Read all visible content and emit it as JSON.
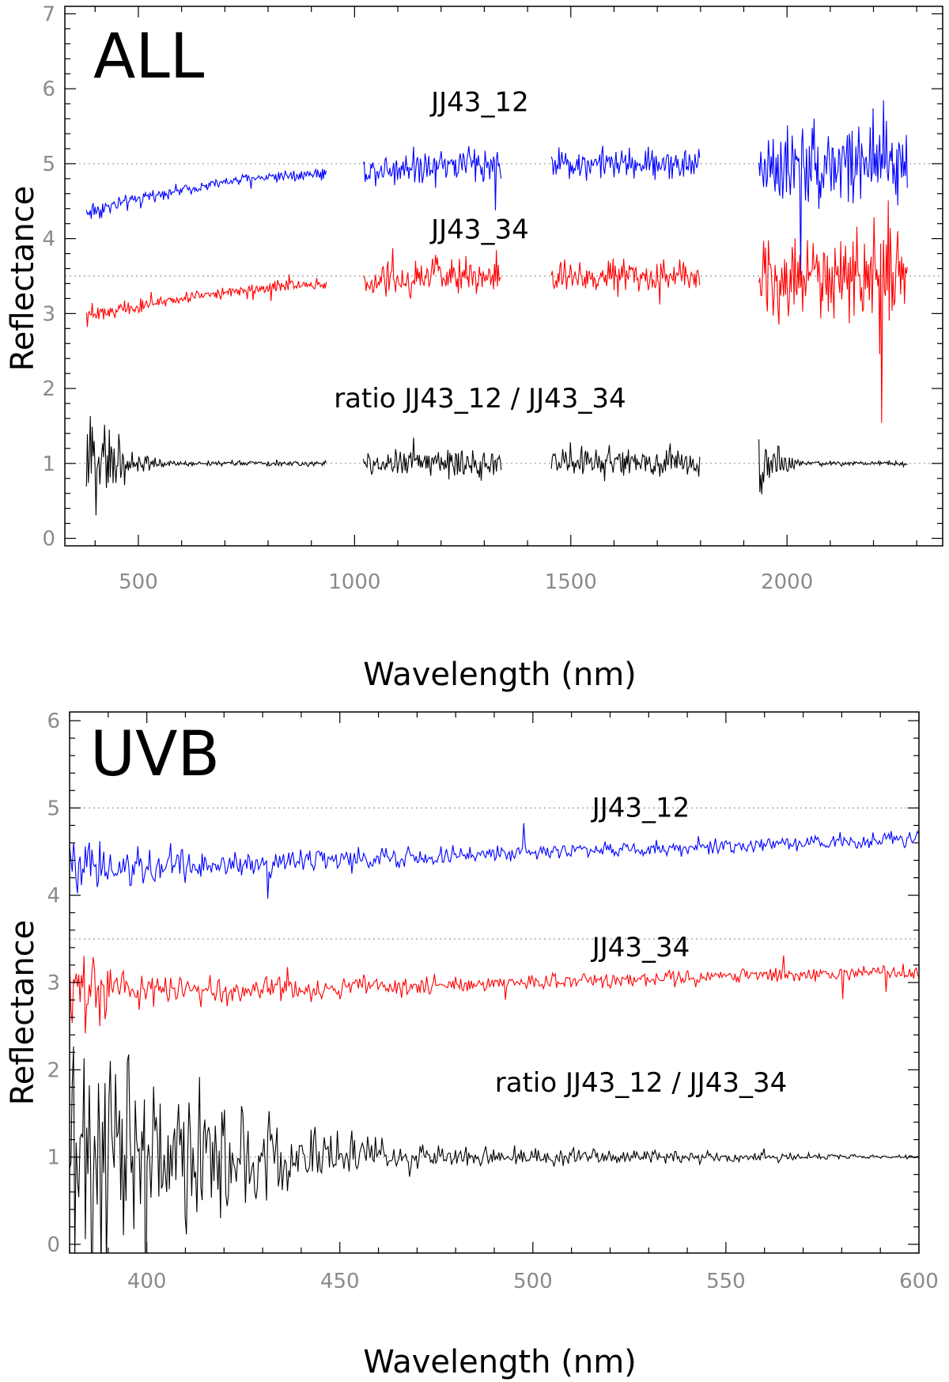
{
  "chart_data": [
    {
      "type": "line",
      "panel_label": "ALL",
      "xlabel": "Wavelength (nm)",
      "ylabel": "Reflectance",
      "xlim": [
        330,
        2360
      ],
      "ylim": [
        -0.1,
        7.1
      ],
      "xticks": [
        500,
        1000,
        1500,
        2000
      ],
      "xtick_labels": [
        "500",
        "1000",
        "1500",
        "2000"
      ],
      "yticks": [
        0,
        1,
        2,
        3,
        4,
        5,
        6,
        7
      ],
      "ytick_labels": [
        "0",
        "1",
        "2",
        "3",
        "4",
        "5",
        "6",
        "7"
      ],
      "reference_lines": [
        1,
        3.5,
        5
      ],
      "grid": false,
      "segments": [
        [
          380,
          935
        ],
        [
          1020,
          1340
        ],
        [
          1455,
          1800
        ],
        [
          1935,
          2280
        ]
      ],
      "series": [
        {
          "name": "JJ43_12",
          "color": "#0000ff",
          "x": [
            380,
            450,
            550,
            650,
            750,
            850,
            935,
            1020,
            1180,
            1340,
            1455,
            1600,
            1800,
            1935,
            2100,
            2280
          ],
          "values": [
            4.35,
            4.45,
            4.6,
            4.7,
            4.8,
            4.85,
            4.87,
            4.9,
            5.0,
            5.0,
            5.0,
            5.0,
            5.0,
            5.0,
            5.0,
            5.0
          ],
          "noise": [
            0.1,
            0.06,
            0.04,
            0.04,
            0.04,
            0.05,
            0.05,
            0.1,
            0.15,
            0.15,
            0.12,
            0.12,
            0.12,
            0.3,
            0.35,
            0.4
          ],
          "label": "JJ43_12",
          "label_at": [
            1290,
            5.7
          ]
        },
        {
          "name": "JJ43_34",
          "color": "#ff0000",
          "x": [
            380,
            450,
            550,
            650,
            750,
            850,
            935,
            1020,
            1180,
            1340,
            1455,
            1600,
            1800,
            1935,
            2100,
            2280
          ],
          "values": [
            2.95,
            3.05,
            3.15,
            3.25,
            3.32,
            3.37,
            3.39,
            3.42,
            3.5,
            3.5,
            3.5,
            3.5,
            3.5,
            3.5,
            3.5,
            3.5
          ],
          "noise": [
            0.1,
            0.06,
            0.04,
            0.04,
            0.04,
            0.05,
            0.05,
            0.1,
            0.15,
            0.15,
            0.12,
            0.12,
            0.12,
            0.3,
            0.35,
            0.4
          ],
          "label": "JJ43_34",
          "label_at": [
            1290,
            4.0
          ]
        },
        {
          "name": "ratio JJ43_12 / JJ43_34",
          "color": "#000000",
          "x": [
            380,
            420,
            480,
            550,
            650,
            935,
            1020,
            1180,
            1340,
            1455,
            1600,
            1800,
            1935,
            1990,
            2050,
            2280
          ],
          "values": [
            1,
            1,
            1,
            1,
            1,
            1,
            1,
            1,
            1,
            1,
            1,
            1,
            1,
            1,
            1,
            1
          ],
          "noise": [
            0.4,
            0.3,
            0.12,
            0.03,
            0.02,
            0.02,
            0.08,
            0.12,
            0.12,
            0.12,
            0.12,
            0.12,
            0.3,
            0.08,
            0.02,
            0.02
          ],
          "label": "ratio JJ43_12 / JJ43_34",
          "label_at": [
            1290,
            1.75
          ]
        }
      ]
    },
    {
      "type": "line",
      "panel_label": "UVB",
      "xlabel": "Wavelength (nm)",
      "ylabel": "Reflectance",
      "xlim": [
        380,
        600
      ],
      "ylim": [
        -0.1,
        6.1
      ],
      "xticks": [
        400,
        450,
        500,
        550,
        600
      ],
      "xtick_labels": [
        "400",
        "450",
        "500",
        "550",
        "600"
      ],
      "yticks": [
        0,
        1,
        2,
        3,
        4,
        5,
        6
      ],
      "ytick_labels": [
        "0",
        "1",
        "2",
        "3",
        "4",
        "5",
        "6"
      ],
      "reference_lines": [
        1,
        3.5,
        5
      ],
      "grid": false,
      "segments": [
        [
          380,
          600
        ]
      ],
      "series": [
        {
          "name": "JJ43_12",
          "color": "#0000ff",
          "x": [
            380,
            400,
            425,
            450,
            475,
            500,
            525,
            550,
            575,
            600
          ],
          "values": [
            4.3,
            4.35,
            4.35,
            4.4,
            4.45,
            4.5,
            4.52,
            4.57,
            4.6,
            4.65
          ],
          "noise": [
            0.3,
            0.12,
            0.08,
            0.08,
            0.06,
            0.05,
            0.05,
            0.05,
            0.05,
            0.05
          ],
          "label": "JJ43_12",
          "label_at": [
            528,
            4.9
          ]
        },
        {
          "name": "JJ43_34",
          "color": "#ff0000",
          "x": [
            380,
            400,
            425,
            450,
            475,
            500,
            525,
            550,
            575,
            600
          ],
          "values": [
            2.9,
            2.92,
            2.9,
            2.95,
            2.97,
            3.0,
            3.03,
            3.07,
            3.1,
            3.12
          ],
          "noise": [
            0.3,
            0.12,
            0.08,
            0.08,
            0.06,
            0.05,
            0.05,
            0.05,
            0.05,
            0.05
          ],
          "label": "JJ43_34",
          "label_at": [
            528,
            3.3
          ]
        },
        {
          "name": "ratio JJ43_12 / JJ43_34",
          "color": "#000000",
          "x": [
            380,
            400,
            425,
            450,
            475,
            500,
            525,
            550,
            575,
            600
          ],
          "values": [
            1,
            1,
            1,
            1,
            1,
            1,
            1,
            1,
            1,
            1
          ],
          "noise": [
            0.8,
            0.55,
            0.35,
            0.12,
            0.08,
            0.06,
            0.05,
            0.03,
            0.02,
            0.01
          ],
          "label": "ratio JJ43_12 / JJ43_34",
          "label_at": [
            528,
            1.75
          ]
        }
      ]
    }
  ]
}
